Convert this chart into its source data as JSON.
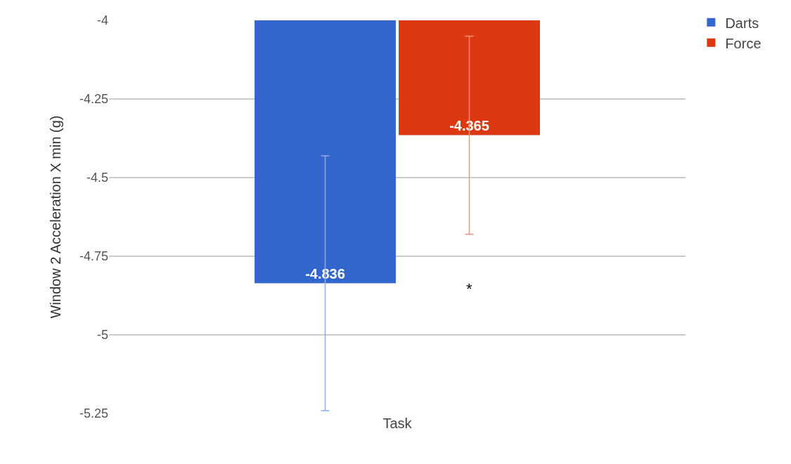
{
  "chart_data": {
    "type": "bar",
    "ylabel": "Window 2 Acceleration X min (g)",
    "categories": [
      "Task"
    ],
    "series": [
      {
        "name": "Darts",
        "color": "#3366cc",
        "values": [
          -4.836
        ],
        "errors": [
          0.405
        ]
      },
      {
        "name": "Force",
        "color": "#dc3912",
        "values": [
          -4.365
        ],
        "errors": [
          0.315
        ]
      }
    ],
    "ylim": [
      -5.25,
      -4
    ],
    "yticks": [
      -5.25,
      -5,
      -4.75,
      -4.5,
      -4.25,
      -4
    ],
    "grid": "y",
    "legend": "top right",
    "data_labels": true,
    "annotations": [
      "*"
    ]
  }
}
